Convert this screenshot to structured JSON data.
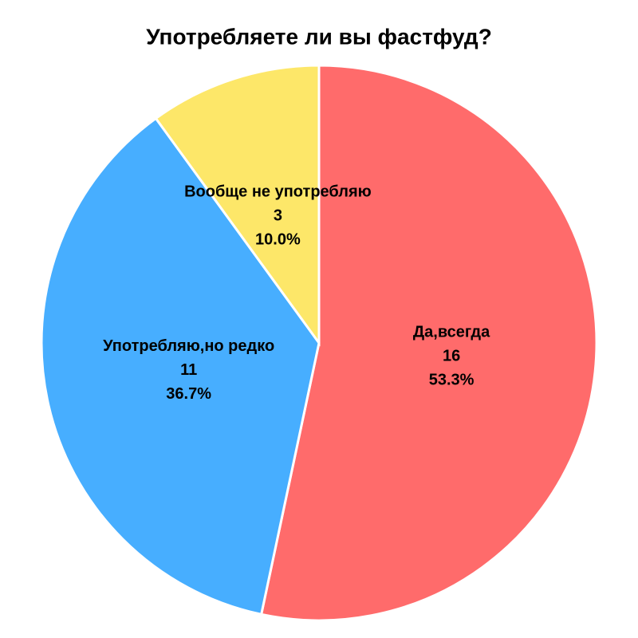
{
  "chart_data": {
    "type": "pie",
    "title": "Употребляете ли вы фастфуд?",
    "categories": [
      "Да,всегда",
      "Употребляю,но редко",
      "Вообще не употребляю"
    ],
    "values": [
      16,
      11,
      3
    ],
    "percent_labels": [
      "53.3%",
      "36.7%",
      "10.0%"
    ],
    "colors": [
      "#ff6b6b",
      "#47aeff",
      "#fde769"
    ]
  }
}
